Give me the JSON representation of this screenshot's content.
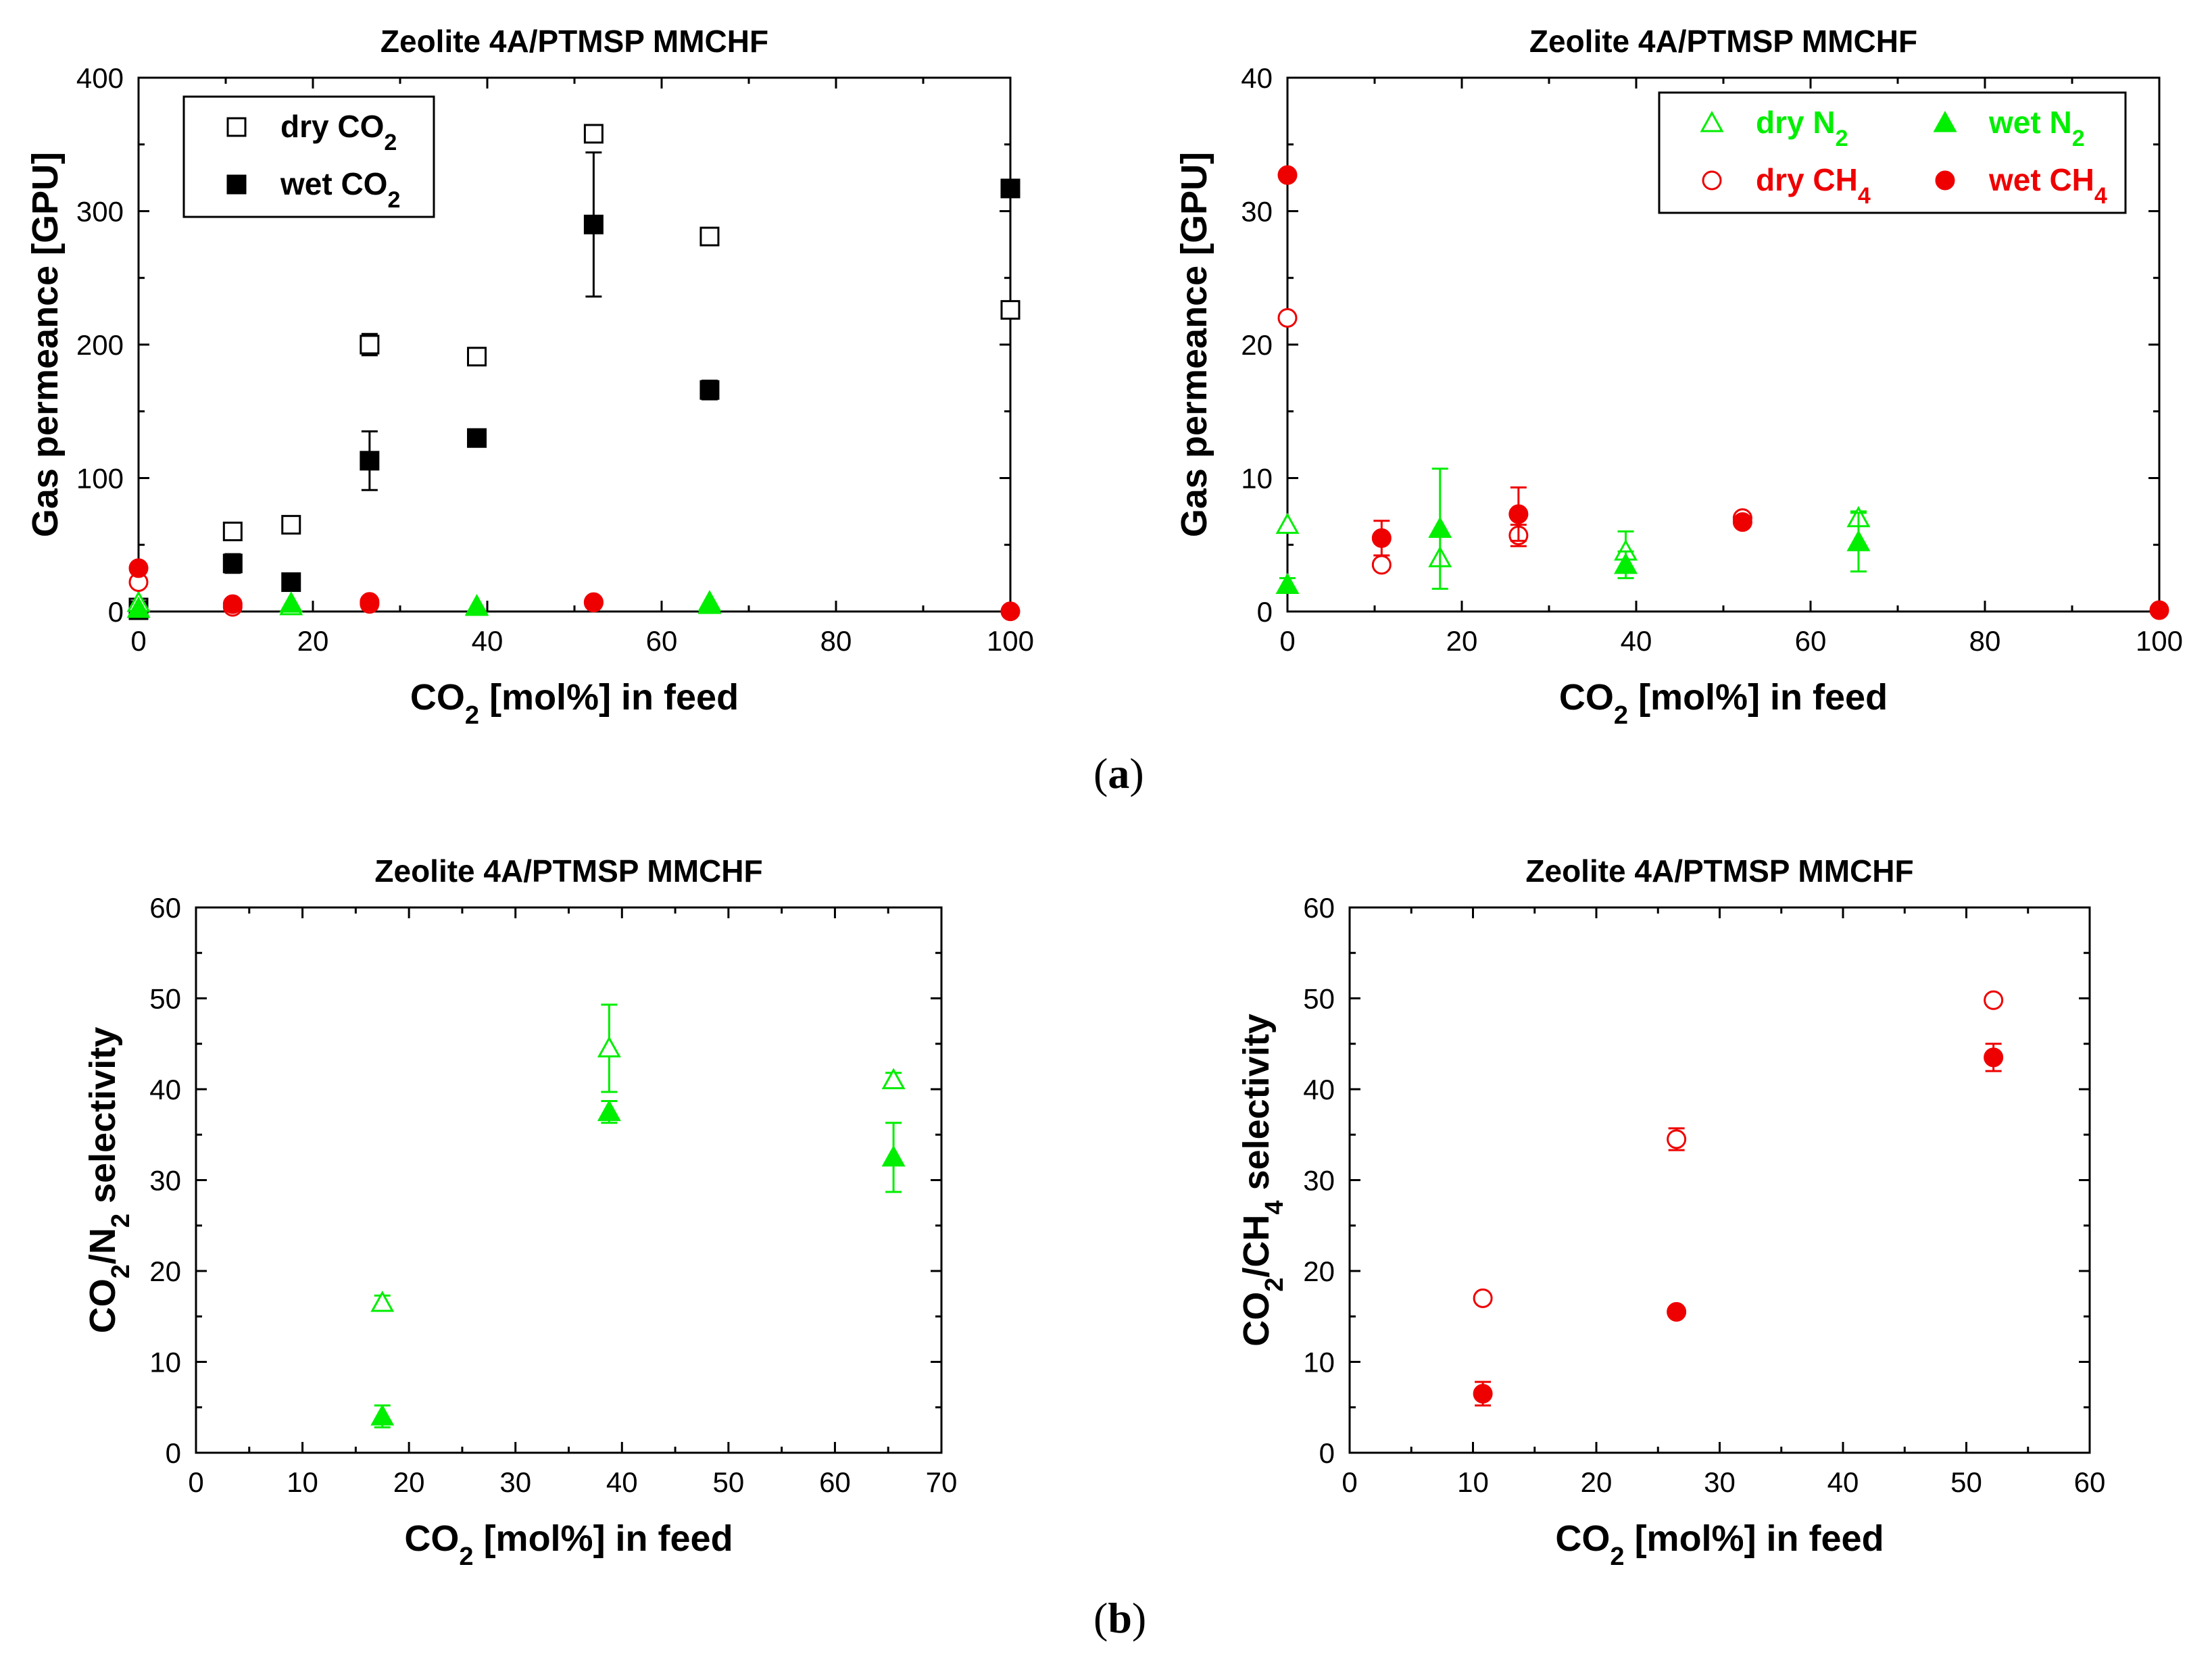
{
  "panels": {
    "a": "a",
    "b": "b"
  },
  "chart_data": [
    {
      "id": "a-left",
      "type": "scatter",
      "title": "Zeolite 4A/PTMSP MMCHF",
      "xlabel": "CO2 [mol%] in feed",
      "ylabel": "Gas permeance [GPU]",
      "xlim": [
        0,
        100
      ],
      "ylim": [
        0,
        400
      ],
      "xticks": [
        0,
        20,
        40,
        60,
        80,
        100
      ],
      "yticks": [
        0,
        100,
        200,
        300,
        400
      ],
      "grid": false,
      "legend": "top-left",
      "series": [
        {
          "name": "dry CO2",
          "legend": true,
          "marker": "square",
          "fill": false,
          "color": "#000000",
          "points": [
            {
              "x": 0,
              "y": 3,
              "err": 0
            },
            {
              "x": 10.8,
              "y": 60,
              "err": 0
            },
            {
              "x": 17.5,
              "y": 65,
              "err": 4
            },
            {
              "x": 26.5,
              "y": 200,
              "err": 8
            },
            {
              "x": 38.8,
              "y": 191,
              "err": 4
            },
            {
              "x": 52.2,
              "y": 358,
              "err": 5
            },
            {
              "x": 65.5,
              "y": 281,
              "err": 5
            },
            {
              "x": 100,
              "y": 226,
              "err": 4
            }
          ]
        },
        {
          "name": "wet CO2",
          "legend": true,
          "marker": "square",
          "fill": true,
          "color": "#000000",
          "points": [
            {
              "x": 0,
              "y": 1,
              "err": 0
            },
            {
              "x": 10.8,
              "y": 36,
              "err": 7
            },
            {
              "x": 17.5,
              "y": 22,
              "err": 0
            },
            {
              "x": 26.5,
              "y": 113,
              "err": 22
            },
            {
              "x": 38.8,
              "y": 130,
              "err": 0
            },
            {
              "x": 52.2,
              "y": 290,
              "err": 54
            },
            {
              "x": 65.5,
              "y": 166,
              "err": 7
            },
            {
              "x": 100,
              "y": 317,
              "err": 0
            }
          ]
        },
        {
          "name": "dry N2",
          "legend": false,
          "marker": "triangle",
          "fill": false,
          "color": "#00ee00",
          "points": [
            {
              "x": 0,
              "y": 6.5,
              "err": 0
            },
            {
              "x": 17.5,
              "y": 4,
              "err": 0
            },
            {
              "x": 38.8,
              "y": 4,
              "err": 0
            },
            {
              "x": 65.5,
              "y": 7,
              "err": 0
            }
          ]
        },
        {
          "name": "wet N2",
          "legend": false,
          "marker": "triangle",
          "fill": true,
          "color": "#00ee00",
          "points": [
            {
              "x": 0,
              "y": 2,
              "err": 0
            },
            {
              "x": 17.5,
              "y": 6,
              "err": 0
            },
            {
              "x": 38.8,
              "y": 3.5,
              "err": 0
            },
            {
              "x": 65.5,
              "y": 5,
              "err": 0
            }
          ]
        },
        {
          "name": "dry CH4",
          "legend": false,
          "marker": "circle",
          "fill": false,
          "color": "#ee0000",
          "points": [
            {
              "x": 0,
              "y": 22,
              "err": 0
            },
            {
              "x": 10.8,
              "y": 3.5,
              "err": 0
            },
            {
              "x": 26.5,
              "y": 5.7,
              "err": 0
            },
            {
              "x": 52.2,
              "y": 7,
              "err": 0
            }
          ]
        },
        {
          "name": "wet CH4",
          "legend": false,
          "marker": "circle",
          "fill": true,
          "color": "#ee0000",
          "points": [
            {
              "x": 0,
              "y": 32.5,
              "err": 0
            },
            {
              "x": 10.8,
              "y": 5.5,
              "err": 0
            },
            {
              "x": 26.5,
              "y": 7.2,
              "err": 0
            },
            {
              "x": 52.2,
              "y": 6.7,
              "err": 0
            },
            {
              "x": 100,
              "y": 0.1,
              "err": 0
            }
          ]
        }
      ]
    },
    {
      "id": "a-right",
      "type": "scatter",
      "title": "Zeolite 4A/PTMSP MMCHF",
      "xlabel": "CO2 [mol%] in feed",
      "ylabel": "Gas permeance [GPU]",
      "xlim": [
        0,
        100
      ],
      "ylim": [
        0,
        40
      ],
      "xticks": [
        0,
        20,
        40,
        60,
        80,
        100
      ],
      "yticks": [
        0,
        10,
        20,
        30,
        40
      ],
      "grid": false,
      "legend": "top-right",
      "series": [
        {
          "name": "dry N2",
          "legend": true,
          "marker": "triangle",
          "fill": false,
          "color": "#00ee00",
          "points": [
            {
              "x": 0,
              "y": 6.5,
              "err": 0
            },
            {
              "x": 17.5,
              "y": 4,
              "err": 0
            },
            {
              "x": 38.8,
              "y": 4.5,
              "err": 1.5
            },
            {
              "x": 65.5,
              "y": 7,
              "err": 0.5
            }
          ]
        },
        {
          "name": "wet N2",
          "legend": true,
          "marker": "triangle",
          "fill": true,
          "color": "#00ee00",
          "points": [
            {
              "x": 0,
              "y": 2,
              "err": 0.5
            },
            {
              "x": 17.5,
              "y": 6.2,
              "err": 4.5
            },
            {
              "x": 38.8,
              "y": 3.5,
              "err": 1
            },
            {
              "x": 65.5,
              "y": 5.2,
              "err": 2.2
            }
          ]
        },
        {
          "name": "dry CH4",
          "legend": true,
          "marker": "circle",
          "fill": false,
          "color": "#ee0000",
          "points": [
            {
              "x": 0,
              "y": 22,
              "err": 0.3
            },
            {
              "x": 10.8,
              "y": 3.5,
              "err": 0
            },
            {
              "x": 26.5,
              "y": 5.7,
              "err": 0.8
            },
            {
              "x": 52.2,
              "y": 7,
              "err": 0
            }
          ]
        },
        {
          "name": "wet CH4",
          "legend": true,
          "marker": "circle",
          "fill": true,
          "color": "#ee0000",
          "points": [
            {
              "x": 0,
              "y": 32.7,
              "err": 0
            },
            {
              "x": 10.8,
              "y": 5.5,
              "err": 1.3
            },
            {
              "x": 26.5,
              "y": 7.3,
              "err": 2
            },
            {
              "x": 52.2,
              "y": 6.7,
              "err": 0
            },
            {
              "x": 100,
              "y": 0.1,
              "err": 0
            }
          ]
        }
      ]
    },
    {
      "id": "b-left",
      "type": "scatter",
      "title": "Zeolite 4A/PTMSP MMCHF",
      "xlabel": "CO2 [mol%] in feed",
      "ylabel": "CO2/N2 selectivity",
      "xlim": [
        0,
        70
      ],
      "ylim": [
        0,
        60
      ],
      "xticks": [
        0,
        10,
        20,
        30,
        40,
        50,
        60,
        70
      ],
      "yticks": [
        0,
        10,
        20,
        30,
        40,
        50,
        60
      ],
      "grid": false,
      "legend": "none",
      "series": [
        {
          "name": "dry",
          "legend": false,
          "marker": "triangle",
          "fill": false,
          "color": "#00ee00",
          "points": [
            {
              "x": 17.5,
              "y": 16.5,
              "err": 0.8
            },
            {
              "x": 38.8,
              "y": 44.5,
              "err": 4.8
            },
            {
              "x": 65.5,
              "y": 41,
              "err": 0.8
            }
          ]
        },
        {
          "name": "wet",
          "legend": false,
          "marker": "triangle",
          "fill": true,
          "color": "#00ee00",
          "points": [
            {
              "x": 17.5,
              "y": 4,
              "err": 1.2
            },
            {
              "x": 38.8,
              "y": 37.5,
              "err": 1.2
            },
            {
              "x": 65.5,
              "y": 32.5,
              "err": 3.8
            }
          ]
        }
      ]
    },
    {
      "id": "b-right",
      "type": "scatter",
      "title": "Zeolite 4A/PTMSP MMCHF",
      "xlabel": "CO2 [mol%] in feed",
      "ylabel": "CO2/CH4 selectivity",
      "xlim": [
        0,
        60
      ],
      "ylim": [
        0,
        60
      ],
      "xticks": [
        0,
        10,
        20,
        30,
        40,
        50,
        60
      ],
      "yticks": [
        0,
        10,
        20,
        30,
        40,
        50,
        60
      ],
      "grid": false,
      "legend": "none",
      "series": [
        {
          "name": "dry",
          "legend": false,
          "marker": "circle",
          "fill": false,
          "color": "#ee0000",
          "points": [
            {
              "x": 10.8,
              "y": 17,
              "err": 0
            },
            {
              "x": 26.5,
              "y": 34.5,
              "err": 1.2
            },
            {
              "x": 52.2,
              "y": 49.8,
              "err": 0.4
            }
          ]
        },
        {
          "name": "wet",
          "legend": false,
          "marker": "circle",
          "fill": true,
          "color": "#ee0000",
          "points": [
            {
              "x": 10.8,
              "y": 6.5,
              "err": 1.3
            },
            {
              "x": 26.5,
              "y": 15.5,
              "err": 0
            },
            {
              "x": 52.2,
              "y": 43.5,
              "err": 1.5
            }
          ]
        }
      ]
    }
  ]
}
